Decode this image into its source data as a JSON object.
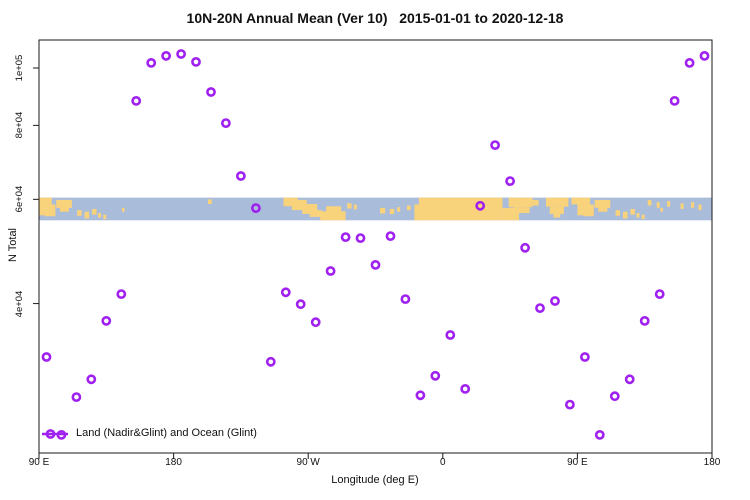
{
  "title": "10N-20N Annual Mean (Ver 10)   2015-01-01 to 2020-12-18",
  "axes": {
    "x_label": "Longitude (deg E)",
    "y_label": "N Total",
    "x_ticks": [
      {
        "lon": 90,
        "label": "90 E"
      },
      {
        "lon": 180,
        "label": "180"
      },
      {
        "lon": 270,
        "label": "90 W"
      },
      {
        "lon": 360,
        "label": "0"
      },
      {
        "lon": 450,
        "label": "90 E"
      },
      {
        "lon": 540,
        "label": "180"
      }
    ],
    "y_ticks": [
      {
        "value": 100000,
        "label": "1e+05"
      },
      {
        "value": 80000,
        "label": "8e+04"
      },
      {
        "value": 60000,
        "label": "6e+04"
      },
      {
        "value": 40000,
        "label": "4e+04"
      }
    ]
  },
  "legend": {
    "label": "Land (Nadir&Glint) and Ocean (Glint)",
    "marker": "line-with-open-circle"
  },
  "colors": {
    "point": "#A020F0",
    "ocean": "#A9BCDA",
    "land": "#F9D27C",
    "axis": "#1A1A1A"
  },
  "chart_data": {
    "type": "scatter",
    "title": "10N-20N Annual Mean (Ver 10)   2015-01-01 to 2020-12-18",
    "xlabel": "Longitude (deg E)",
    "ylabel": "N Total",
    "x_axis": {
      "domain": [
        90,
        540
      ],
      "note": "longitude wraps: 90E to 180, twice around",
      "ticks_every_deg": 90
    },
    "y_axis": {
      "scale": "log",
      "tick_values": [
        100000,
        80000,
        60000,
        40000
      ]
    },
    "marker": "open-circle",
    "points": [
      {
        "lon": 95,
        "value": 32500
      },
      {
        "lon": 105,
        "value": 24000
      },
      {
        "lon": 115,
        "value": 27800
      },
      {
        "lon": 125,
        "value": 29800
      },
      {
        "lon": 135,
        "value": 37400
      },
      {
        "lon": 145,
        "value": 41500
      },
      {
        "lon": 155,
        "value": 88000
      },
      {
        "lon": 165,
        "value": 102000
      },
      {
        "lon": 175,
        "value": 104800
      },
      {
        "lon": 185,
        "value": 105600
      },
      {
        "lon": 195,
        "value": 102400
      },
      {
        "lon": 205,
        "value": 91100
      },
      {
        "lon": 215,
        "value": 80700
      },
      {
        "lon": 225,
        "value": 65700
      },
      {
        "lon": 235,
        "value": 58000
      },
      {
        "lon": 245,
        "value": 31900
      },
      {
        "lon": 255,
        "value": 41800
      },
      {
        "lon": 265,
        "value": 39900
      },
      {
        "lon": 275,
        "value": 37200
      },
      {
        "lon": 285,
        "value": 45400
      },
      {
        "lon": 295,
        "value": 51800
      },
      {
        "lon": 305,
        "value": 51600
      },
      {
        "lon": 315,
        "value": 46500
      },
      {
        "lon": 325,
        "value": 52000
      },
      {
        "lon": 335,
        "value": 40700
      },
      {
        "lon": 345,
        "value": 28000
      },
      {
        "lon": 355,
        "value": 30200
      },
      {
        "lon": 365,
        "value": 35400
      },
      {
        "lon": 375,
        "value": 28700
      },
      {
        "lon": 385,
        "value": 58500
      },
      {
        "lon": 395,
        "value": 74100
      },
      {
        "lon": 405,
        "value": 64400
      },
      {
        "lon": 415,
        "value": 49700
      },
      {
        "lon": 425,
        "value": 39300
      },
      {
        "lon": 435,
        "value": 40400
      },
      {
        "lon": 445,
        "value": 27000
      },
      {
        "lon": 455,
        "value": 32500
      },
      {
        "lon": 465,
        "value": 24000
      },
      {
        "lon": 475,
        "value": 27900
      },
      {
        "lon": 485,
        "value": 29800
      },
      {
        "lon": 495,
        "value": 37400
      },
      {
        "lon": 505,
        "value": 41500
      },
      {
        "lon": 515,
        "value": 88000
      },
      {
        "lon": 525,
        "value": 102000
      },
      {
        "lon": 535,
        "value": 104800
      }
    ],
    "map_band": {
      "top_value": 60400,
      "bottom_value": 55300,
      "land_patches": [
        [
          90,
          98.5,
          0,
          0.78
        ],
        [
          94,
          101,
          0.3,
          0.82
        ],
        [
          101.5,
          112,
          0.1,
          0.45
        ],
        [
          104,
          110,
          0.4,
          0.62
        ],
        [
          115.5,
          118.5,
          0.55,
          0.8
        ],
        [
          120.5,
          123.5,
          0.62,
          0.92
        ],
        [
          125.5,
          128.5,
          0.5,
          0.75
        ],
        [
          129.5,
          131.5,
          0.68,
          0.88
        ],
        [
          133,
          135,
          0.75,
          0.95
        ],
        [
          145.5,
          147.2,
          0.45,
          0.62
        ],
        [
          203,
          205.5,
          0.08,
          0.28
        ],
        [
          253.5,
          263,
          0,
          0.38
        ],
        [
          259,
          269,
          0.1,
          0.55
        ],
        [
          266,
          276,
          0.28,
          0.72
        ],
        [
          271,
          279,
          0.55,
          0.85
        ],
        [
          278,
          295,
          0.6,
          1.0
        ],
        [
          282,
          292,
          0.38,
          0.68
        ],
        [
          296,
          299,
          0.25,
          0.48
        ],
        [
          300.5,
          302.5,
          0.3,
          0.52
        ],
        [
          318,
          321.5,
          0.45,
          0.7
        ],
        [
          324.5,
          327.5,
          0.5,
          0.72
        ],
        [
          329.5,
          331.5,
          0.42,
          0.62
        ],
        [
          336,
          338.5,
          0.35,
          0.55
        ],
        [
          341,
          345,
          0.3,
          1.0
        ],
        [
          344,
          400,
          0,
          1.0
        ],
        [
          400,
          411,
          0.45,
          1.0
        ],
        [
          404,
          420,
          0,
          0.42
        ],
        [
          407,
          418,
          0.42,
          0.68
        ],
        [
          420,
          424,
          0.1,
          0.35
        ],
        [
          429,
          444,
          0,
          0.4
        ],
        [
          431.5,
          441,
          0.4,
          0.72
        ],
        [
          434,
          438.5,
          0.72,
          0.88
        ],
        [
          446,
          452,
          0,
          0.3
        ],
        [
          450,
          458.5,
          0,
          0.78
        ],
        [
          454,
          461,
          0.3,
          0.82
        ],
        [
          461.5,
          472,
          0.1,
          0.45
        ],
        [
          464,
          470,
          0.4,
          0.62
        ],
        [
          475.5,
          478.5,
          0.55,
          0.8
        ],
        [
          480.5,
          483.5,
          0.62,
          0.92
        ],
        [
          485.5,
          488.5,
          0.5,
          0.75
        ],
        [
          489.5,
          491.5,
          0.68,
          0.88
        ],
        [
          493,
          495,
          0.75,
          0.95
        ],
        [
          497,
          499.5,
          0.1,
          0.35
        ],
        [
          503,
          505,
          0.2,
          0.45
        ],
        [
          505.5,
          507.2,
          0.45,
          0.62
        ],
        [
          510,
          512,
          0.15,
          0.4
        ],
        [
          519,
          521,
          0.25,
          0.5
        ],
        [
          526,
          528,
          0.2,
          0.45
        ],
        [
          531,
          533,
          0.3,
          0.55
        ]
      ],
      "water_patches": [
        [
          400,
          404,
          0,
          0.45
        ]
      ]
    },
    "legend_position": "bottom-left"
  }
}
